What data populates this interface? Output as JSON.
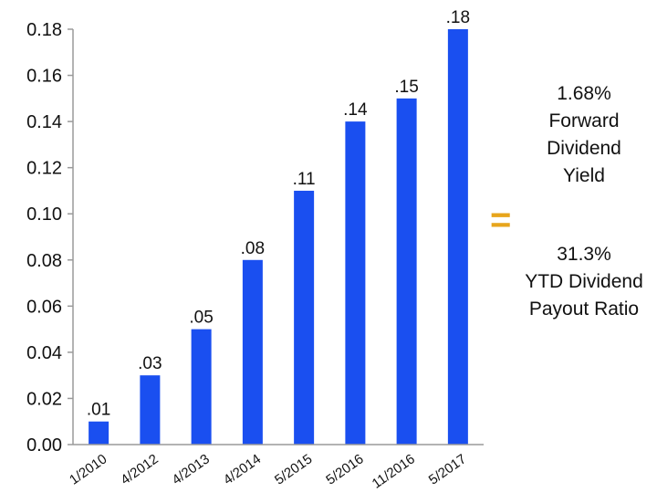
{
  "chart_data": {
    "type": "bar",
    "categories": [
      "1/2010",
      "4/2012",
      "4/2013",
      "4/2014",
      "5/2015",
      "5/2016",
      "11/2016",
      "5/2017"
    ],
    "values": [
      0.01,
      0.03,
      0.05,
      0.08,
      0.11,
      0.14,
      0.15,
      0.18
    ],
    "data_labels": [
      ".01",
      ".03",
      ".05",
      ".08",
      ".11",
      ".14",
      ".15",
      ".18"
    ],
    "y_ticks": [
      "0.00",
      "0.02",
      "0.04",
      "0.06",
      "0.08",
      "0.10",
      "0.12",
      "0.14",
      "0.16",
      "0.18"
    ],
    "ylim": [
      0,
      0.18
    ],
    "grid": false,
    "bar_color": "#1a4ff0",
    "title": "",
    "xlabel": "",
    "ylabel": ""
  },
  "annotation": {
    "equals_sign": "=",
    "equals_color": "#e7a51c",
    "yield_value": "1.68%",
    "yield_line1": "Forward",
    "yield_line2": "Dividend",
    "yield_line3": "Yield",
    "payout_value": "31.3%",
    "payout_line1": "YTD Dividend",
    "payout_line2": "Payout Ratio"
  }
}
